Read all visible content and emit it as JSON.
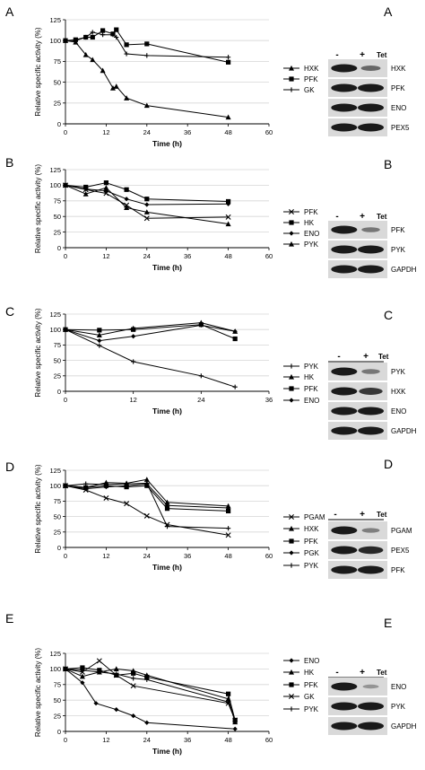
{
  "chart_data": [
    {
      "panel": "A",
      "type": "line",
      "xlabel": "Time (h)",
      "ylabel": "Relative specific activity (%)",
      "xlim": [
        0,
        60
      ],
      "ylim": [
        0,
        125
      ],
      "xticks": [
        0,
        12,
        24,
        36,
        48,
        60
      ],
      "yticks": [
        0,
        25,
        50,
        75,
        100,
        125
      ],
      "grid": true,
      "legend": "right",
      "series": [
        {
          "name": "HXK",
          "marker": "triangle",
          "x": [
            0,
            3,
            6,
            8,
            11,
            14,
            15,
            18,
            24,
            48
          ],
          "y": [
            100,
            98,
            83,
            77,
            64,
            43,
            45,
            31,
            22,
            8
          ]
        },
        {
          "name": "PFK",
          "marker": "square",
          "x": [
            0,
            3,
            6,
            8,
            11,
            14,
            15,
            18,
            24,
            48
          ],
          "y": [
            100,
            101,
            104,
            104,
            112,
            108,
            113,
            95,
            96,
            74
          ]
        },
        {
          "name": "GK",
          "marker": "plus",
          "x": [
            0,
            3,
            6,
            8,
            11,
            14,
            15,
            18,
            24,
            48
          ],
          "y": [
            100,
            100,
            104,
            110,
            107,
            107,
            104,
            84,
            82,
            80
          ]
        }
      ]
    },
    {
      "panel": "B",
      "type": "line",
      "xlabel": "Time (h)",
      "ylabel": "Relative specific activity (%)",
      "xlim": [
        0,
        60
      ],
      "ylim": [
        0,
        125
      ],
      "xticks": [
        0,
        12,
        24,
        36,
        48,
        60
      ],
      "yticks": [
        0,
        25,
        50,
        75,
        100,
        125
      ],
      "grid": true,
      "legend": "right",
      "series": [
        {
          "name": "PFK",
          "marker": "x",
          "x": [
            0,
            6,
            12,
            18,
            24,
            48
          ],
          "y": [
            100,
            93,
            87,
            68,
            47,
            49
          ]
        },
        {
          "name": "HK",
          "marker": "square",
          "x": [
            0,
            6,
            12,
            18,
            24,
            48
          ],
          "y": [
            100,
            97,
            104,
            93,
            78,
            74
          ]
        },
        {
          "name": "ENO",
          "marker": "diamond",
          "x": [
            0,
            6,
            12,
            18,
            24,
            48
          ],
          "y": [
            100,
            94,
            91,
            78,
            69,
            70
          ]
        },
        {
          "name": "PYK",
          "marker": "triangle",
          "x": [
            0,
            6,
            12,
            18,
            24,
            48
          ],
          "y": [
            100,
            86,
            96,
            64,
            57,
            38
          ]
        }
      ]
    },
    {
      "panel": "C",
      "type": "line",
      "xlabel": "Time (h)",
      "ylabel": "Relative specific activity (%)",
      "xlim": [
        0,
        36
      ],
      "ylim": [
        0,
        125
      ],
      "xticks": [
        0,
        12,
        24,
        36
      ],
      "yticks": [
        0,
        25,
        50,
        75,
        100,
        125
      ],
      "grid": true,
      "legend": "right",
      "series": [
        {
          "name": "PYK",
          "marker": "plus",
          "x": [
            0,
            6,
            12,
            24,
            30
          ],
          "y": [
            100,
            74,
            48,
            25,
            7
          ]
        },
        {
          "name": "HK",
          "marker": "triangle",
          "x": [
            0,
            6,
            12,
            24,
            30
          ],
          "y": [
            100,
            91,
            102,
            111,
            97
          ]
        },
        {
          "name": "PFK",
          "marker": "square",
          "x": [
            0,
            6,
            12,
            24,
            30
          ],
          "y": [
            100,
            99,
            100,
            108,
            85
          ]
        },
        {
          "name": "ENO",
          "marker": "diamond",
          "x": [
            0,
            6,
            12,
            24,
            30
          ],
          "y": [
            100,
            82,
            89,
            107,
            97
          ]
        }
      ]
    },
    {
      "panel": "D",
      "type": "line",
      "xlabel": "Time (h)",
      "ylabel": "Relative specific activity (%)",
      "xlim": [
        0,
        60
      ],
      "ylim": [
        0,
        125
      ],
      "xticks": [
        0,
        12,
        24,
        36,
        48,
        60
      ],
      "yticks": [
        0,
        25,
        50,
        75,
        100,
        125
      ],
      "grid": true,
      "legend": "right",
      "series": [
        {
          "name": "PGAM",
          "marker": "x",
          "x": [
            0,
            6,
            12,
            18,
            24,
            30,
            48
          ],
          "y": [
            100,
            93,
            80,
            71,
            51,
            37,
            20
          ]
        },
        {
          "name": "HXK",
          "marker": "triangle",
          "x": [
            0,
            6,
            12,
            18,
            24,
            30,
            48
          ],
          "y": [
            100,
            97,
            105,
            104,
            110,
            73,
            67
          ]
        },
        {
          "name": "PFK",
          "marker": "square",
          "x": [
            0,
            6,
            12,
            18,
            24,
            30,
            48
          ],
          "y": [
            100,
            97,
            100,
            98,
            100,
            63,
            59
          ]
        },
        {
          "name": "PGK",
          "marker": "diamond",
          "x": [
            0,
            6,
            12,
            18,
            24,
            30,
            48
          ],
          "y": [
            100,
            95,
            98,
            100,
            103,
            68,
            64
          ]
        },
        {
          "name": "PYK",
          "marker": "plus",
          "x": [
            0,
            6,
            12,
            18,
            24,
            30,
            48
          ],
          "y": [
            100,
            103,
            102,
            103,
            104,
            34,
            31
          ]
        }
      ]
    },
    {
      "panel": "E",
      "type": "line",
      "xlabel": "Time (h)",
      "ylabel": "Relative specific activity (%)",
      "xlim": [
        0,
        60
      ],
      "ylim": [
        0,
        125
      ],
      "xticks": [
        0,
        12,
        24,
        36,
        48,
        60
      ],
      "yticks": [
        0,
        25,
        50,
        75,
        100,
        125
      ],
      "grid": true,
      "legend": "right",
      "series": [
        {
          "name": "ENO",
          "marker": "diamond",
          "x": [
            0,
            5,
            9,
            15,
            20,
            24,
            50
          ],
          "y": [
            100,
            78,
            45,
            35,
            25,
            14,
            4
          ]
        },
        {
          "name": "HK",
          "marker": "triangle",
          "x": [
            0,
            5,
            10,
            15,
            20,
            24,
            48,
            50
          ],
          "y": [
            100,
            88,
            95,
            100,
            97,
            90,
            52,
            15
          ]
        },
        {
          "name": "PFK",
          "marker": "square",
          "x": [
            0,
            5,
            10,
            15,
            20,
            24,
            48,
            50
          ],
          "y": [
            100,
            102,
            98,
            90,
            93,
            87,
            60,
            18
          ]
        },
        {
          "name": "GK",
          "marker": "x",
          "x": [
            0,
            5,
            10,
            15,
            20,
            48,
            50
          ],
          "y": [
            100,
            95,
            113,
            90,
            73,
            45,
            18
          ]
        },
        {
          "name": "PYK",
          "marker": "plus",
          "x": [
            0,
            5,
            10,
            15,
            20,
            24,
            48,
            50
          ],
          "y": [
            100,
            98,
            95,
            92,
            85,
            83,
            47,
            18
          ]
        }
      ]
    }
  ],
  "blots": [
    {
      "panel": "A",
      "minus": "-",
      "plus": "+",
      "tet": "Tet",
      "bands": [
        {
          "label": "HXK",
          "style": "reduced",
          "r": 0.45
        },
        {
          "label": "PFK",
          "style": "equal",
          "r": 1.0
        },
        {
          "label": "ENO",
          "style": "equal",
          "r": 1.0
        },
        {
          "label": "PEX5",
          "style": "equal",
          "r": 1.0
        }
      ]
    },
    {
      "panel": "B",
      "minus": "-",
      "plus": "+",
      "tet": "Tet",
      "bands": [
        {
          "label": "PFK",
          "style": "reduced",
          "r": 0.35
        },
        {
          "label": "PYK",
          "style": "equal",
          "r": 1.0
        },
        {
          "label": "GAPDH",
          "style": "equal",
          "r": 1.0
        }
      ]
    },
    {
      "panel": "C",
      "minus": "-",
      "plus": "+",
      "tet": "Tet",
      "bands": [
        {
          "label": "PYK",
          "style": "reduced",
          "r": 0.35
        },
        {
          "label": "HXK",
          "style": "equal",
          "r": 0.8
        },
        {
          "label": "ENO",
          "style": "equal",
          "r": 1.0
        },
        {
          "label": "GAPDH",
          "style": "equal",
          "r": 1.0
        }
      ]
    },
    {
      "panel": "D",
      "minus": "-",
      "plus": "+",
      "tet": "Tet",
      "bands": [
        {
          "label": "PGAM",
          "style": "reduced",
          "r": 0.3
        },
        {
          "label": "PEX5",
          "style": "equal",
          "r": 0.9
        },
        {
          "label": "PFK",
          "style": "equal",
          "r": 1.0
        }
      ]
    },
    {
      "panel": "E",
      "minus": "-",
      "plus": "+",
      "tet": "Tet",
      "bands": [
        {
          "label": "ENO",
          "style": "reduced",
          "r": 0.15
        },
        {
          "label": "PYK",
          "style": "equal",
          "r": 1.0
        },
        {
          "label": "GAPDH",
          "style": "equal",
          "r": 1.0
        }
      ]
    }
  ]
}
